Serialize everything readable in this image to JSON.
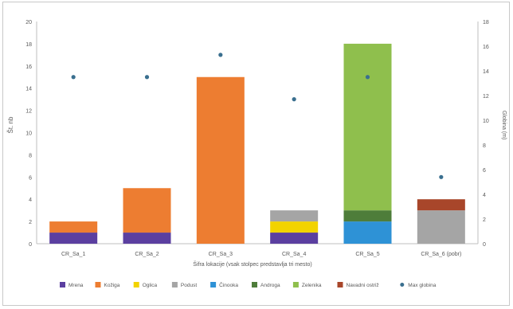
{
  "chart_data": {
    "type": "bar",
    "stacked": true,
    "title": "",
    "xlabel": "Šifra lokacije (vsak stolpec predstavlja tri mesto)",
    "ylabel": "Št. nb",
    "y2label": "Globina (m)",
    "ylim": [
      0,
      20
    ],
    "y2lim": [
      0,
      18
    ],
    "yticks": [
      "0",
      "2",
      "4",
      "6",
      "8",
      "10",
      "12",
      "14",
      "16",
      "18",
      "20"
    ],
    "y2ticks": [
      "0",
      "2",
      "4",
      "6",
      "8",
      "10",
      "12",
      "14",
      "16",
      "18"
    ],
    "grid": false,
    "legend_position": "bottom",
    "categories": [
      "CR_Sa_1",
      "CR_Sa_2",
      "CR_Sa_3",
      "CR_Sa_4",
      "CR_Sa_5",
      "CR_Sa_6 (pobr)"
    ],
    "series": [
      {
        "name": "Mrena",
        "color": "#5b3fa0",
        "values": [
          1,
          1,
          0,
          1,
          0,
          0
        ]
      },
      {
        "name": "Kožiga",
        "color": "#ed7d31",
        "values": [
          1,
          4,
          15,
          0,
          0,
          0
        ]
      },
      {
        "name": "Oglica",
        "color": "#f2d300",
        "values": [
          0,
          0,
          0,
          1,
          0,
          0
        ]
      },
      {
        "name": "Podust",
        "color": "#a5a5a5",
        "values": [
          0,
          0,
          0,
          1,
          0,
          3
        ]
      },
      {
        "name": "Činooka",
        "color": "#2e92d6",
        "values": [
          0,
          0,
          0,
          0,
          2,
          0
        ]
      },
      {
        "name": "Androga",
        "color": "#4e7d3a",
        "values": [
          0,
          0,
          0,
          0,
          1,
          0
        ]
      },
      {
        "name": "Zelenika",
        "color": "#8fbf4d",
        "values": [
          0,
          0,
          0,
          0,
          15,
          0
        ]
      },
      {
        "name": "Navadni ostriž",
        "color": "#a8462a",
        "values": [
          0,
          0,
          0,
          0,
          0,
          1
        ]
      }
    ],
    "points_series": {
      "name": "Max globina",
      "color": "#3a6f8f",
      "axis": "secondary",
      "values": [
        13.5,
        13.5,
        15.3,
        11.7,
        13.5,
        5.4
      ]
    }
  }
}
